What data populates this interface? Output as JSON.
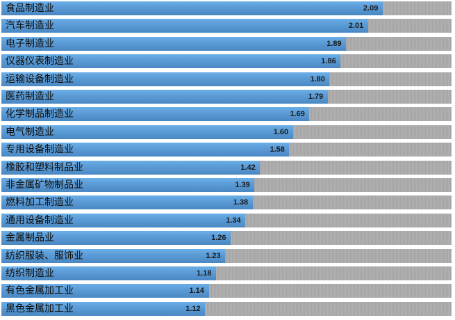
{
  "chart_data": {
    "type": "bar",
    "orientation": "horizontal",
    "title": "",
    "xlabel": "",
    "ylabel": "",
    "xlim": [
      0,
      2.3
    ],
    "colors": {
      "bar": "#5b9bd5",
      "track": "#b0b0b0"
    },
    "categories": [
      "食品制造业",
      "汽车制造业",
      "电子制造业",
      "仪器仪表制造业",
      "运输设备制造业",
      "医药制造业",
      "化学制品制造业",
      "电气制造业",
      "专用设备制造业",
      "橡胶和塑料制品业",
      "非金属矿物制品业",
      "燃料加工制造业",
      "通用设备制造业",
      "金属制品业",
      "纺织服装、服饰业",
      "纺织制造业",
      "有色金属加工业",
      "黑色金属加工业"
    ],
    "values": [
      2.09,
      2.01,
      1.89,
      1.86,
      1.8,
      1.79,
      1.69,
      1.6,
      1.58,
      1.42,
      1.39,
      1.38,
      1.34,
      1.26,
      1.23,
      1.18,
      1.14,
      1.12
    ],
    "value_labels": [
      "2.09",
      "2.01",
      "1.89",
      "1.86",
      "1.80",
      "1.79",
      "1.69",
      "1.60",
      "1.58",
      "1.42",
      "1.39",
      "1.38",
      "1.34",
      "1.26",
      "1.23",
      "1.18",
      "1.14",
      "1.12"
    ]
  }
}
